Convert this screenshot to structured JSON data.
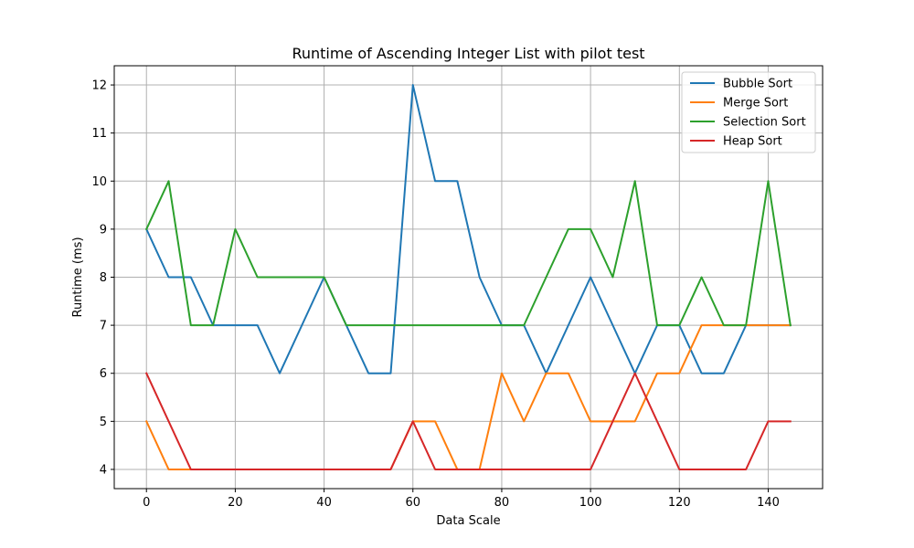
{
  "chart_data": {
    "type": "line",
    "title": "Runtime of Ascending Integer List with pilot test",
    "xlabel": "Data Scale",
    "ylabel": "Runtime (ms)",
    "xlim": [
      -7.25,
      152.25
    ],
    "ylim": [
      3.6,
      12.4
    ],
    "x_ticks": [
      0,
      20,
      40,
      60,
      80,
      100,
      120,
      140
    ],
    "y_ticks": [
      4,
      5,
      6,
      7,
      8,
      9,
      10,
      11,
      12
    ],
    "grid": true,
    "legend_position": "upper right",
    "x": [
      0,
      5,
      10,
      15,
      20,
      25,
      30,
      35,
      40,
      45,
      50,
      55,
      60,
      65,
      70,
      75,
      80,
      85,
      90,
      95,
      100,
      105,
      110,
      115,
      120,
      125,
      130,
      135,
      140,
      145
    ],
    "series": [
      {
        "name": "Bubble Sort",
        "color": "#1f77b4",
        "values": [
          9,
          8,
          8,
          7,
          7,
          7,
          6,
          7,
          8,
          7,
          6,
          6,
          12,
          10,
          10,
          8,
          7,
          7,
          6,
          7,
          8,
          7,
          6,
          7,
          7,
          6,
          6,
          7,
          7,
          7
        ]
      },
      {
        "name": "Merge Sort",
        "color": "#ff7f0e",
        "values": [
          5,
          4,
          4,
          4,
          4,
          4,
          4,
          4,
          4,
          4,
          4,
          4,
          5,
          5,
          4,
          4,
          6,
          5,
          6,
          6,
          5,
          5,
          5,
          6,
          6,
          7,
          7,
          7,
          7,
          7
        ]
      },
      {
        "name": "Selection Sort",
        "color": "#2ca02c",
        "values": [
          9,
          10,
          7,
          7,
          9,
          8,
          8,
          8,
          8,
          7,
          7,
          7,
          7,
          7,
          7,
          7,
          7,
          7,
          8,
          9,
          9,
          8,
          10,
          7,
          7,
          8,
          7,
          7,
          10,
          7
        ]
      },
      {
        "name": "Heap Sort",
        "color": "#d62728",
        "values": [
          6,
          5,
          4,
          4,
          4,
          4,
          4,
          4,
          4,
          4,
          4,
          4,
          5,
          4,
          4,
          4,
          4,
          4,
          4,
          4,
          4,
          5,
          6,
          5,
          4,
          4,
          4,
          4,
          5,
          5
        ]
      }
    ]
  }
}
